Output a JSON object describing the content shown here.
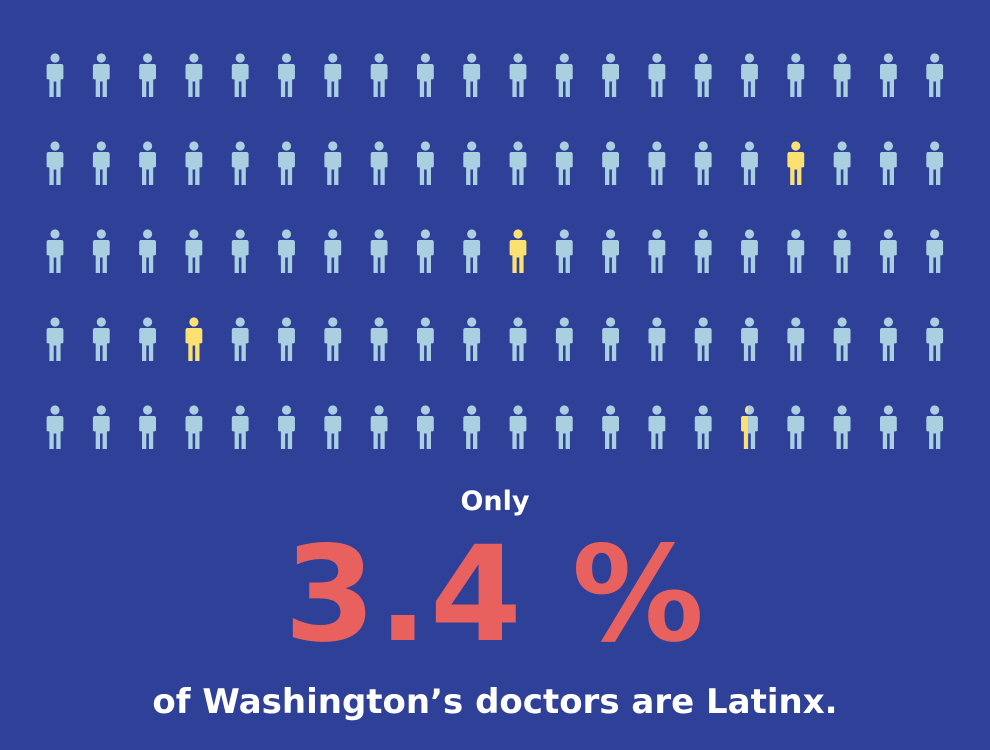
{
  "chart_data": {
    "type": "pictogram",
    "total": 100,
    "rows": 5,
    "columns": 20,
    "highlighted_share": 3.4,
    "highlighted_cells": [
      {
        "row": 2,
        "col": 17,
        "fraction": 1
      },
      {
        "row": 3,
        "col": 11,
        "fraction": 1
      },
      {
        "row": 4,
        "col": 4,
        "fraction": 1
      },
      {
        "row": 5,
        "col": 16,
        "fraction": 0.4
      }
    ]
  },
  "colors": {
    "background": "#2f4099",
    "person": "#a9cfe0",
    "highlight": "#fbe072",
    "stat": "#e8615e",
    "text": "#ffffff"
  },
  "icon": "person-icon",
  "caption": {
    "lead": "Only",
    "stat": "3.4 %",
    "sub": "of Washington’s doctors are Latinx."
  }
}
